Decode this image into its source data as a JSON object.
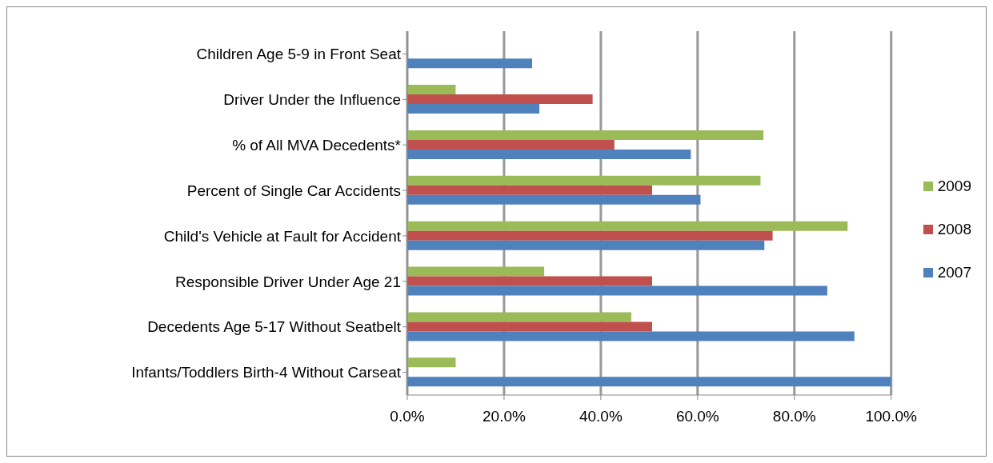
{
  "chart_data": {
    "type": "bar",
    "orientation": "horizontal",
    "categories": [
      "Children Age 5-9 in Front Seat",
      "Driver Under the Influence",
      "% of All MVA Decedents*",
      "Percent of Single Car Accidents",
      "Child's Vehicle at Fault for Accident",
      "Responsible Driver Under Age 21",
      "Decedents Age 5-17 Without Seatbelt",
      "Infants/Toddlers Birth-4 Without Carseat"
    ],
    "series": [
      {
        "name": "2009",
        "color": "#9bbb59",
        "values": [
          null,
          10,
          73.6,
          73,
          91,
          28.3,
          46.3,
          10
        ]
      },
      {
        "name": "2008",
        "color": "#c0504d",
        "values": [
          null,
          38.3,
          42.8,
          50.6,
          75.5,
          50.6,
          50.6,
          null
        ]
      },
      {
        "name": "2007",
        "color": "#4f81bd",
        "values": [
          25.8,
          27.3,
          58.6,
          60.6,
          73.8,
          86.8,
          92.4,
          100
        ]
      }
    ],
    "xlim": [
      0,
      100
    ],
    "xticks": [
      {
        "value": 0,
        "label": "0.0%"
      },
      {
        "value": 20,
        "label": "20.0%"
      },
      {
        "value": 40,
        "label": "40.0%"
      },
      {
        "value": 60,
        "label": "60.0%"
      },
      {
        "value": 80,
        "label": "80.0%"
      },
      {
        "value": 100,
        "label": "100.0%"
      }
    ],
    "grid": "x",
    "legend": "right"
  }
}
